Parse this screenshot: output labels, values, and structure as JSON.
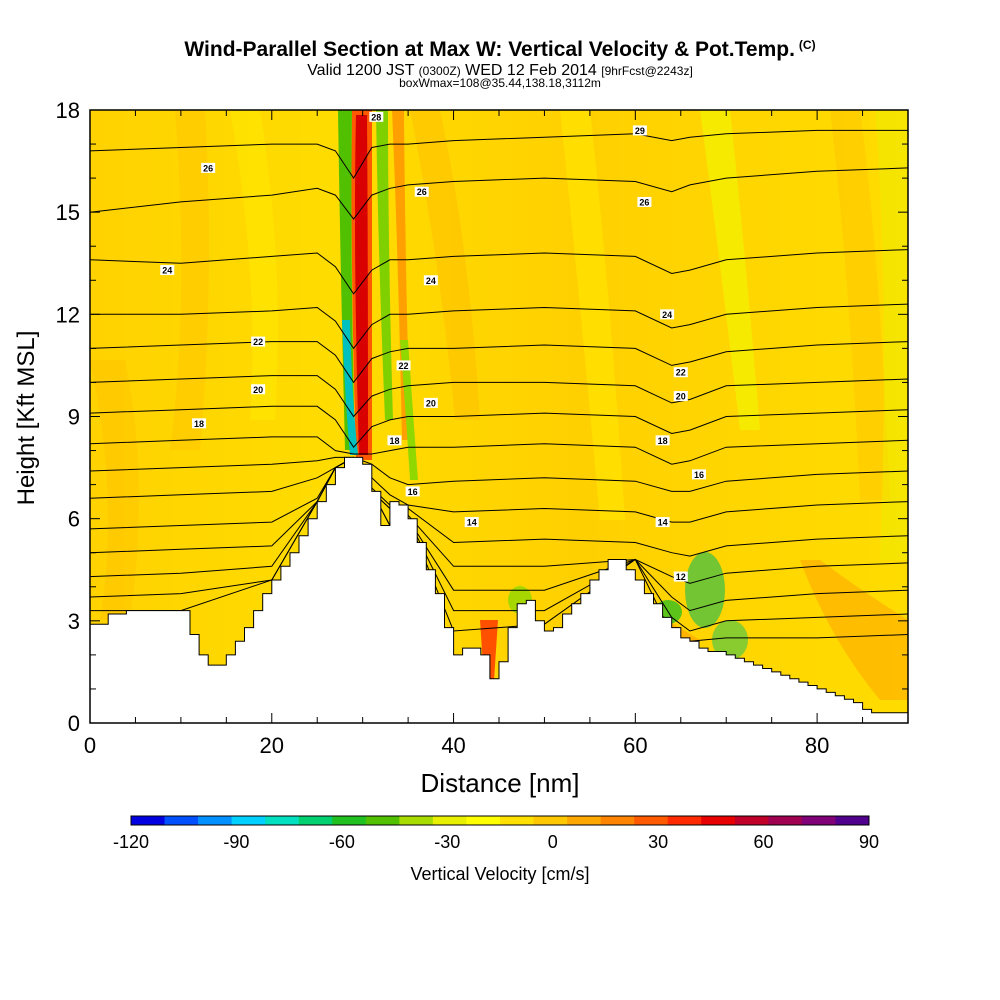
{
  "header": {
    "title": "Wind-Parallel Section at Max W: Vertical Velocity & Pot.Temp.",
    "title_mark": "(C)",
    "valid_prefix": "Valid 1200 JST",
    "valid_zulu": "(0300Z)",
    "valid_date": "WED 12 Feb 2014",
    "forecast": "[9hrFcst@2243z]",
    "box_info": "boxWmax=108@35.44,138.18,3112m"
  },
  "chart_data": {
    "type": "heatmap",
    "xlabel": "Distance [nm]",
    "ylabel": "Height [Kft MSL]",
    "xlim": [
      0,
      90
    ],
    "ylim": [
      0,
      18
    ],
    "x_ticks": [
      "0",
      "20",
      "40",
      "60",
      "80"
    ],
    "x_tick_values": [
      0,
      20,
      40,
      60,
      80
    ],
    "y_ticks": [
      "0",
      "3",
      "6",
      "9",
      "12",
      "15",
      "18"
    ],
    "y_tick_values": [
      0,
      3,
      6,
      9,
      12,
      15,
      18
    ],
    "terrain": {
      "x": [
        0,
        2,
        4,
        6,
        8,
        10,
        11,
        12,
        13,
        14,
        15,
        16,
        17,
        18,
        19,
        20,
        21,
        22,
        23,
        24,
        25,
        26,
        27,
        28,
        29,
        30,
        31,
        32,
        33,
        34,
        35,
        36,
        37,
        38,
        39,
        40,
        41,
        42,
        43,
        44,
        45,
        46,
        47,
        48,
        49,
        50,
        51,
        52,
        53,
        54,
        55,
        56,
        57,
        58,
        59,
        60,
        61,
        62,
        63,
        64,
        65,
        66,
        67,
        68,
        69,
        70,
        71,
        72,
        73,
        74,
        75,
        76,
        77,
        78,
        79,
        80,
        81,
        82,
        83,
        84,
        85,
        86,
        87,
        88,
        89,
        90
      ],
      "height": [
        2.9,
        3.2,
        3.3,
        3.3,
        3.3,
        3.3,
        2.6,
        2.0,
        1.7,
        1.7,
        2.0,
        2.4,
        2.8,
        3.3,
        3.8,
        4.2,
        4.6,
        5.0,
        5.5,
        6.0,
        6.5,
        7.0,
        7.5,
        7.8,
        7.8,
        7.6,
        6.8,
        5.8,
        6.5,
        6.4,
        6.0,
        5.3,
        4.5,
        3.8,
        2.8,
        2.0,
        2.2,
        2.2,
        2.0,
        1.3,
        1.8,
        2.8,
        3.5,
        3.6,
        3.0,
        2.7,
        2.8,
        3.2,
        3.5,
        3.8,
        4.2,
        4.5,
        4.8,
        4.8,
        4.5,
        4.2,
        3.8,
        3.5,
        3.1,
        2.8,
        2.5,
        2.4,
        2.2,
        2.1,
        2.1,
        2.0,
        1.9,
        1.8,
        1.7,
        1.6,
        1.5,
        1.4,
        1.3,
        1.2,
        1.1,
        1.0,
        0.9,
        0.8,
        0.7,
        0.6,
        0.4,
        0.3,
        0.3,
        0.3,
        0.3,
        0.3
      ]
    },
    "theta_labels": [
      {
        "x": 31.5,
        "y": 17.8,
        "text": "28"
      },
      {
        "x": 60.5,
        "y": 17.4,
        "text": "29"
      },
      {
        "x": 13,
        "y": 16.3,
        "text": "26"
      },
      {
        "x": 36.5,
        "y": 15.6,
        "text": "26"
      },
      {
        "x": 61,
        "y": 15.3,
        "text": "26"
      },
      {
        "x": 8.5,
        "y": 13.3,
        "text": "24"
      },
      {
        "x": 37.5,
        "y": 13.0,
        "text": "24"
      },
      {
        "x": 63.5,
        "y": 12.0,
        "text": "24"
      },
      {
        "x": 18.5,
        "y": 11.2,
        "text": "22"
      },
      {
        "x": 34.5,
        "y": 10.5,
        "text": "22"
      },
      {
        "x": 65,
        "y": 10.3,
        "text": "22"
      },
      {
        "x": 18.5,
        "y": 9.8,
        "text": "20"
      },
      {
        "x": 37.5,
        "y": 9.4,
        "text": "20"
      },
      {
        "x": 65,
        "y": 9.6,
        "text": "20"
      },
      {
        "x": 12,
        "y": 8.8,
        "text": "18"
      },
      {
        "x": 33.5,
        "y": 8.3,
        "text": "18"
      },
      {
        "x": 63,
        "y": 8.3,
        "text": "18"
      },
      {
        "x": 67,
        "y": 7.3,
        "text": "16"
      },
      {
        "x": 35.5,
        "y": 6.8,
        "text": "16"
      },
      {
        "x": 42,
        "y": 5.9,
        "text": "14"
      },
      {
        "x": 63,
        "y": 5.9,
        "text": "14"
      },
      {
        "x": 65,
        "y": 4.3,
        "text": "12"
      }
    ],
    "colorbar": {
      "label": "Vertical Velocity [cm/s]",
      "tick_labels": [
        "-120",
        "-90",
        "-60",
        "-30",
        "0",
        "30",
        "60",
        "90"
      ],
      "colors": [
        "#0000e0",
        "#0050ff",
        "#0090ff",
        "#00d0ff",
        "#00e0c0",
        "#00d070",
        "#20c020",
        "#50c000",
        "#a8dc00",
        "#e8f000",
        "#ffff00",
        "#ffe000",
        "#ffc800",
        "#ffa800",
        "#ff8400",
        "#ff5a00",
        "#ff2a00",
        "#e80000",
        "#c00028",
        "#a00050",
        "#800078",
        "#50008c"
      ]
    },
    "series": [
      {
        "name": "",
        "x": [
          0,
          10,
          20,
          25,
          27,
          29,
          31,
          33,
          35,
          40,
          50,
          60,
          64,
          66,
          70,
          80,
          90
        ],
        "y": [
          16.8,
          16.9,
          17.0,
          17.0,
          16.8,
          16.0,
          16.9,
          17.0,
          17.0,
          17.1,
          17.2,
          17.3,
          17.1,
          17.2,
          17.3,
          17.4,
          17.4
        ]
      },
      {
        "name": "",
        "x": [
          0,
          10,
          20,
          25,
          27,
          29,
          31,
          33,
          35,
          40,
          50,
          60,
          64,
          66,
          70,
          80,
          90
        ],
        "y": [
          15.0,
          15.3,
          15.5,
          15.7,
          15.5,
          14.8,
          15.5,
          15.7,
          15.8,
          15.9,
          16.0,
          15.9,
          15.6,
          15.8,
          16.0,
          16.2,
          16.3
        ]
      },
      {
        "name": "",
        "x": [
          0,
          10,
          20,
          25,
          27,
          29,
          31,
          33,
          35,
          40,
          50,
          60,
          64,
          66,
          70,
          80,
          90
        ],
        "y": [
          13.6,
          13.5,
          13.7,
          13.8,
          13.4,
          12.6,
          13.3,
          13.6,
          13.6,
          13.7,
          13.8,
          13.7,
          13.2,
          13.3,
          13.6,
          13.8,
          13.9
        ]
      },
      {
        "name": "",
        "x": [
          0,
          10,
          20,
          25,
          27,
          29,
          31,
          33,
          35,
          40,
          50,
          60,
          64,
          66,
          70,
          80,
          90
        ],
        "y": [
          12.0,
          12.0,
          12.1,
          12.2,
          11.8,
          11.0,
          11.7,
          12.0,
          12.0,
          12.1,
          12.2,
          12.1,
          11.6,
          11.7,
          12.0,
          12.2,
          12.3
        ]
      },
      {
        "name": "",
        "x": [
          0,
          10,
          20,
          25,
          27,
          29,
          31,
          33,
          35,
          40,
          50,
          60,
          64,
          66,
          70,
          80,
          90
        ],
        "y": [
          11.0,
          11.1,
          11.2,
          11.2,
          10.8,
          10.0,
          10.7,
          10.9,
          11.0,
          11.0,
          11.1,
          11.0,
          10.5,
          10.6,
          10.9,
          11.1,
          11.2
        ]
      },
      {
        "name": "",
        "x": [
          0,
          10,
          20,
          25,
          27,
          29,
          31,
          33,
          35,
          40,
          50,
          60,
          64,
          66,
          70,
          80,
          90
        ],
        "y": [
          10.0,
          10.1,
          10.2,
          10.2,
          9.8,
          9.0,
          9.6,
          9.8,
          9.9,
          10.0,
          10.0,
          9.9,
          9.4,
          9.5,
          9.9,
          10.0,
          10.1
        ]
      },
      {
        "name": "",
        "x": [
          0,
          10,
          20,
          25,
          27,
          29,
          31,
          33,
          35,
          40,
          50,
          60,
          64,
          66,
          70,
          80,
          90
        ],
        "y": [
          9.1,
          9.2,
          9.3,
          9.3,
          8.9,
          8.1,
          8.7,
          8.9,
          9.0,
          9.0,
          9.1,
          9.0,
          8.5,
          8.6,
          9.0,
          9.1,
          9.2
        ]
      },
      {
        "name": "",
        "x": [
          0,
          10,
          20,
          25,
          27,
          29,
          31,
          33,
          35,
          40,
          50,
          60,
          64,
          66,
          70,
          80,
          90
        ],
        "y": [
          8.2,
          8.3,
          8.4,
          8.4,
          8.0,
          7.9,
          7.9,
          8.0,
          8.1,
          8.1,
          8.2,
          8.1,
          7.6,
          7.7,
          8.1,
          8.2,
          8.3
        ]
      },
      {
        "name": "",
        "x": [
          0,
          10,
          20,
          25,
          27,
          29,
          31,
          33,
          35,
          40,
          50,
          60,
          64,
          66,
          70,
          80,
          90
        ],
        "y": [
          7.4,
          7.5,
          7.6,
          7.7,
          7.8,
          7.8,
          7.6,
          7.2,
          7.0,
          7.1,
          7.2,
          7.1,
          6.8,
          6.8,
          7.1,
          7.3,
          7.4
        ]
      },
      {
        "name": "",
        "x": [
          0,
          10,
          20,
          25,
          27,
          29,
          31,
          33,
          35,
          40,
          50,
          60,
          64,
          66,
          70,
          80,
          90
        ],
        "y": [
          6.6,
          6.7,
          6.8,
          7.2,
          7.5,
          7.8,
          7.2,
          6.7,
          6.4,
          6.2,
          6.3,
          6.2,
          5.9,
          5.9,
          6.2,
          6.4,
          6.5
        ]
      },
      {
        "name": "",
        "x": [
          0,
          10,
          20,
          25,
          27,
          29,
          31,
          33,
          35,
          40,
          50,
          60,
          64,
          66,
          70,
          80,
          90
        ],
        "y": [
          5.7,
          5.8,
          5.9,
          6.6,
          7.5,
          7.8,
          6.9,
          6.4,
          6.3,
          5.3,
          5.4,
          5.3,
          5.0,
          4.9,
          5.2,
          5.4,
          5.5
        ]
      },
      {
        "name": "",
        "x": [
          0,
          10,
          20,
          25,
          27,
          29,
          31,
          33,
          35,
          40,
          50,
          60,
          64,
          66,
          70,
          80,
          90
        ],
        "y": [
          5.0,
          5.1,
          5.2,
          6.5,
          7.5,
          7.8,
          6.8,
          6.3,
          6.1,
          4.6,
          4.6,
          4.8,
          4.3,
          4.1,
          4.4,
          4.6,
          4.7
        ]
      },
      {
        "name": "",
        "x": [
          0,
          10,
          20,
          25,
          27,
          29,
          31,
          33,
          35,
          40,
          50,
          60,
          64,
          66,
          70,
          80,
          90
        ],
        "y": [
          4.3,
          4.4,
          4.6,
          6.5,
          7.5,
          7.8,
          6.8,
          6.3,
          6.0,
          3.9,
          3.9,
          4.8,
          3.7,
          3.3,
          3.6,
          3.8,
          3.9
        ]
      },
      {
        "name": "",
        "x": [
          0,
          10,
          20,
          25,
          27,
          29,
          31,
          33,
          35,
          40,
          50,
          60,
          64,
          66,
          70,
          80,
          90
        ],
        "y": [
          3.7,
          3.8,
          4.2,
          6.5,
          7.5,
          7.8,
          6.8,
          5.8,
          6.0,
          3.3,
          3.3,
          4.8,
          3.1,
          2.7,
          3.0,
          3.1,
          3.2
        ]
      },
      {
        "name": "",
        "x": [
          0,
          10,
          20,
          25,
          27,
          29,
          31,
          33,
          35,
          40,
          50,
          60,
          64,
          66,
          70,
          80,
          90
        ],
        "y": [
          3.3,
          3.3,
          4.2,
          6.5,
          7.5,
          7.8,
          6.8,
          5.8,
          6.0,
          2.7,
          2.9,
          4.8,
          2.6,
          2.4,
          2.5,
          2.5,
          2.6
        ]
      }
    ]
  }
}
